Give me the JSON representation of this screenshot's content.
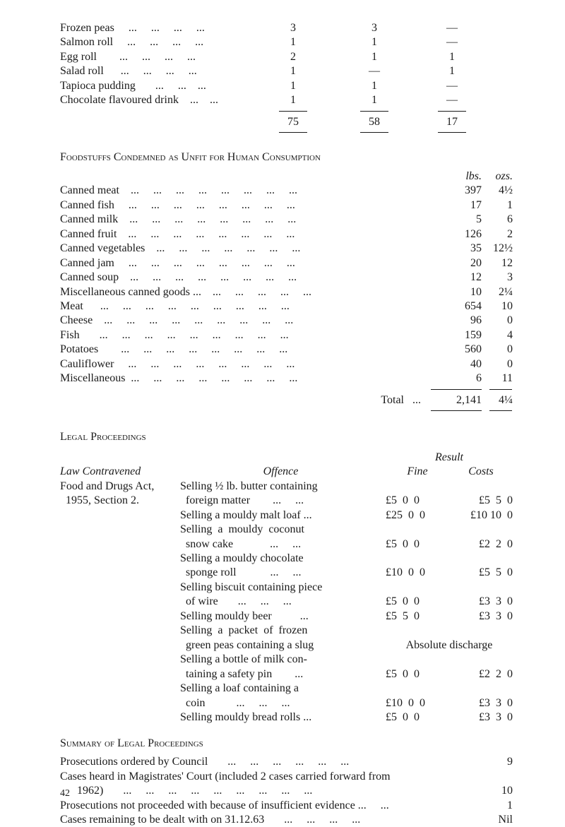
{
  "top_table": {
    "rows": [
      {
        "name": "Frozen peas     ...     ...     ...     ...",
        "c1": "3",
        "c2": "3",
        "c3": "—"
      },
      {
        "name": "Salmon roll     ...     ...     ...     ...",
        "c1": "1",
        "c2": "1",
        "c3": "—"
      },
      {
        "name": "Egg roll        ...     ...     ...     ...",
        "c1": "2",
        "c2": "1",
        "c3": "1"
      },
      {
        "name": "Salad roll      ...     ...     ...     ...",
        "c1": "1",
        "c2": "—",
        "c3": "1"
      },
      {
        "name": "Tapioca pudding       ...     ...    ...",
        "c1": "1",
        "c2": "1",
        "c3": "—"
      },
      {
        "name": "Chocolate flavoured drink    ...    ...",
        "c1": "1",
        "c2": "1",
        "c3": "—"
      }
    ],
    "totals": {
      "c1": "75",
      "c2": "58",
      "c3": "17"
    }
  },
  "condemned": {
    "title": "Foodstuffs Condemned as Unfit for Human Consumption",
    "head_lbs": "lbs.",
    "head_ozs": "ozs.",
    "rows": [
      {
        "name": "Canned meat    ...     ...     ...     ...     ...     ...     ...     ...",
        "lbs": "397",
        "ozs": "4½"
      },
      {
        "name": "Canned fish     ...     ...     ...     ...     ...     ...     ...     ...",
        "lbs": "17",
        "ozs": "1"
      },
      {
        "name": "Canned milk    ...     ...     ...     ...     ...     ...     ...     ...",
        "lbs": "5",
        "ozs": "6"
      },
      {
        "name": "Canned fruit    ...     ...     ...     ...     ...     ...     ...     ...",
        "lbs": "126",
        "ozs": "2"
      },
      {
        "name": "Canned vegetables    ...     ...     ...     ...     ...     ...     ...",
        "lbs": "35",
        "ozs": "12½"
      },
      {
        "name": "Canned jam     ...     ...     ...     ...     ...     ...     ...     ...",
        "lbs": "20",
        "ozs": "12"
      },
      {
        "name": "Canned soup    ...     ...     ...     ...     ...     ...     ...     ...",
        "lbs": "12",
        "ozs": "3"
      },
      {
        "name": "Miscellaneous canned goods ...    ...     ...     ...     ...     ...",
        "lbs": "10",
        "ozs": "2¼"
      },
      {
        "name": "Meat      ...     ...     ...     ...     ...     ...     ...     ...     ...",
        "lbs": "654",
        "ozs": "10"
      },
      {
        "name": "Cheese    ...     ...     ...     ...     ...     ...     ...     ...     ...",
        "lbs": "96",
        "ozs": "0"
      },
      {
        "name": "Fish       ...     ...     ...     ...     ...     ...     ...     ...     ...",
        "lbs": "159",
        "ozs": "4"
      },
      {
        "name": "Potatoes        ...     ...     ...     ...     ...     ...     ...     ...",
        "lbs": "560",
        "ozs": "0"
      },
      {
        "name": "Cauliflower     ...     ...     ...     ...     ...     ...     ...     ...",
        "lbs": "40",
        "ozs": "0"
      },
      {
        "name": "Miscellaneous  ...     ...     ...     ...     ...     ...     ...     ...",
        "lbs": "6",
        "ozs": "11"
      }
    ],
    "total_label": "Total   ...",
    "total_lbs": "2,141",
    "total_ozs": "4¼"
  },
  "legal": {
    "title": "Legal Proceedings",
    "head_law": "Law Contravened",
    "head_offence": "Offence",
    "head_result": "Result",
    "head_fine": "Fine",
    "head_costs": "Costs",
    "law_text_1": "Food and Drugs Act,",
    "law_text_2": "  1955, Section 2.",
    "rows": [
      {
        "off": "Selling ½ lb. butter containing\n  foreign matter        ...     ...",
        "fine": "£5  0  0",
        "costs": "£5  5  0"
      },
      {
        "off": "Selling a mouldy malt loaf ...",
        "fine": "£25  0  0",
        "costs": "£10 10  0"
      },
      {
        "off": "Selling  a  mouldy  coconut\n  snow cake             ...     ...",
        "fine": "£5  0  0",
        "costs": "£2  2  0"
      },
      {
        "off": "Selling a mouldy chocolate\n  sponge roll            ...     ...",
        "fine": "£10  0  0",
        "costs": "£5  5  0"
      },
      {
        "off": "Selling biscuit containing piece\n  of wire       ...     ...     ...",
        "fine": "£5  0  0",
        "costs": "£3  3  0"
      },
      {
        "off": "Selling mouldy beer          ...",
        "fine": "£5  5  0",
        "costs": "£3  3  0"
      },
      {
        "off": "Selling  a  packet  of  frozen\n  green peas containing a slug",
        "fine": "Absolute discharge",
        "costs": "",
        "merge": true
      },
      {
        "off": "Selling a bottle of milk con-\n  taining a safety pin        ...",
        "fine": "£5  0  0",
        "costs": "£2  2  0"
      },
      {
        "off": "Selling a loaf containing a\n  coin           ...     ...     ...",
        "fine": "£10  0  0",
        "costs": "£3  3  0"
      },
      {
        "off": "Selling mouldy bread rolls ...",
        "fine": "£5  0  0",
        "costs": "£3  3  0"
      }
    ]
  },
  "summary": {
    "title": "Summary of Legal Proceedings",
    "rows": [
      {
        "label": "Prosecutions ordered by Council       ...     ...     ...     ...     ...     ...",
        "val": "9"
      },
      {
        "label": "Cases heard in Magistrates' Court (included 2 cases carried forward from\n      1962)       ...     ...     ...     ...     ...     ...     ...     ...     ...",
        "val": "10"
      },
      {
        "label": "Prosecutions not proceeded with because of insufficient evidence ...     ...",
        "val": "1"
      },
      {
        "label": "Cases remaining to be dealt with on 31.12.63       ...     ...     ...     ...",
        "val": "Nil"
      }
    ]
  },
  "page_number": "42"
}
